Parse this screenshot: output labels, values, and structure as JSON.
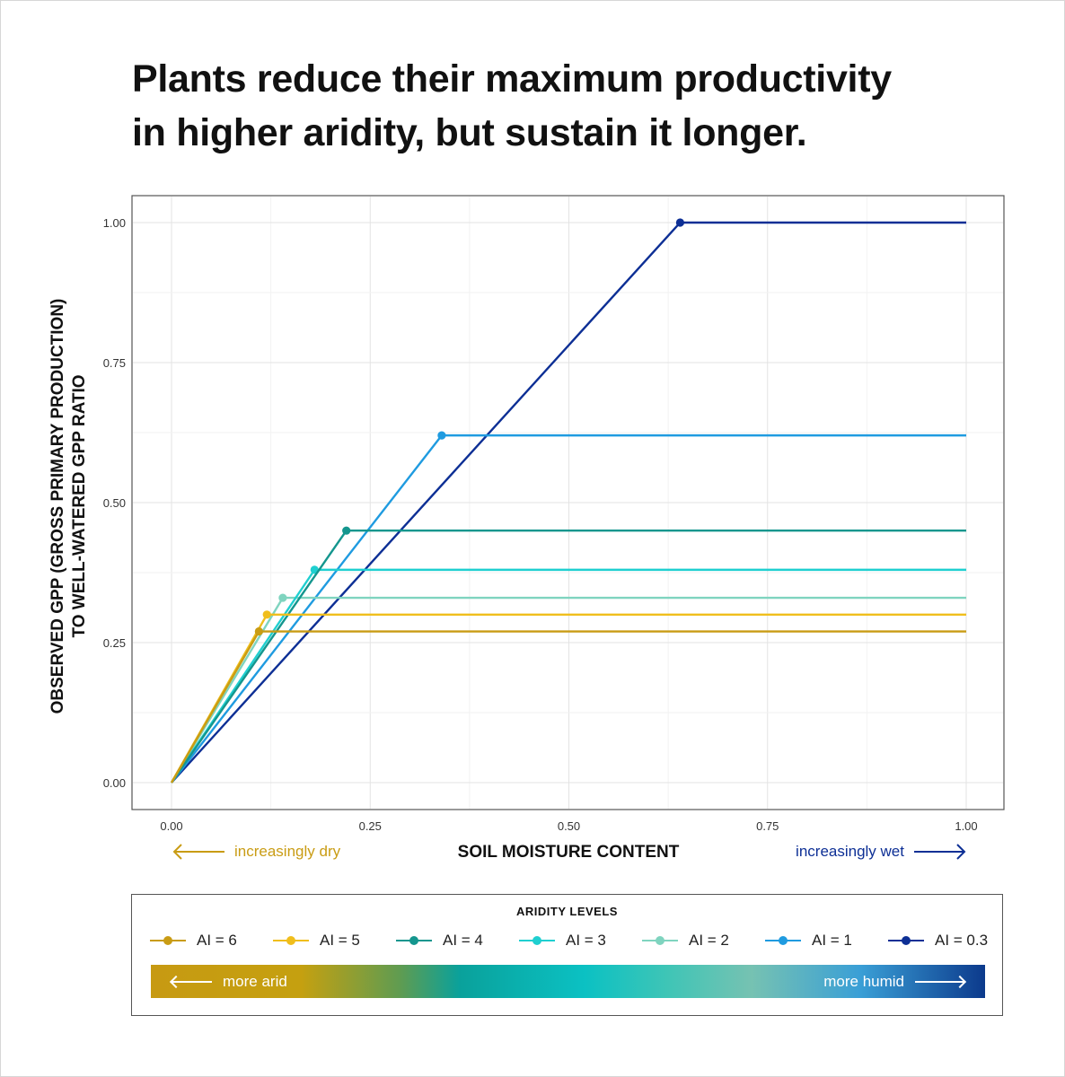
{
  "title_lines": [
    "Plants reduce their maximum productivity",
    "in higher aridity, but sustain it longer."
  ],
  "chart_data": {
    "type": "line",
    "title": "Plants reduce their maximum productivity in higher aridity, but sustain it longer.",
    "xlabel": "SOIL MOISTURE CONTENT",
    "ylabel_lines": [
      "OBSERVED GPP (GROSS PRIMARY PRODUCTION)",
      "TO WELL-WATERED GPP RATIO"
    ],
    "xlim": [
      0,
      1
    ],
    "ylim": [
      0,
      1
    ],
    "xticks": [
      "0.00",
      "0.25",
      "0.50",
      "0.75",
      "1.00"
    ],
    "yticks": [
      "0.00",
      "0.25",
      "0.50",
      "0.75",
      "1.00"
    ],
    "grid": true,
    "x_annotations": {
      "dry": "increasingly dry",
      "wet": "increasingly wet"
    },
    "series": [
      {
        "name": "AI = 6",
        "color": "#c99c14",
        "x": [
          0,
          0.11,
          1.0
        ],
        "y": [
          0,
          0.27,
          0.27
        ]
      },
      {
        "name": "AI = 5",
        "color": "#f0be1c",
        "x": [
          0,
          0.12,
          1.0
        ],
        "y": [
          0,
          0.3,
          0.3
        ]
      },
      {
        "name": "AI = 4",
        "color": "#14968e",
        "x": [
          0,
          0.22,
          1.0
        ],
        "y": [
          0,
          0.45,
          0.45
        ]
      },
      {
        "name": "AI = 3",
        "color": "#1fcfd0",
        "x": [
          0,
          0.18,
          1.0
        ],
        "y": [
          0,
          0.38,
          0.38
        ]
      },
      {
        "name": "AI = 2",
        "color": "#7fd4bf",
        "x": [
          0,
          0.14,
          1.0
        ],
        "y": [
          0,
          0.33,
          0.33
        ]
      },
      {
        "name": "AI = 1",
        "color": "#1f9be0",
        "x": [
          0,
          0.34,
          1.0
        ],
        "y": [
          0,
          0.62,
          0.62
        ]
      },
      {
        "name": "AI = 0.3",
        "color": "#0d2f95",
        "x": [
          0,
          0.64,
          1.0
        ],
        "y": [
          0,
          1.0,
          1.0
        ]
      }
    ]
  },
  "legend": {
    "title": "ARIDITY LEVELS",
    "gradient_left_label": "more arid",
    "gradient_right_label": "more humid"
  },
  "colors": {
    "dry_annotation": "#c99c14",
    "wet_annotation": "#0d2f95"
  }
}
